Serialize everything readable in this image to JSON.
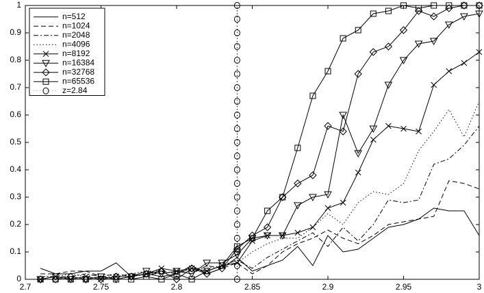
{
  "chart_data": {
    "type": "line",
    "x": [
      2.71,
      2.72,
      2.73,
      2.74,
      2.75,
      2.76,
      2.77,
      2.78,
      2.79,
      2.8,
      2.81,
      2.82,
      2.83,
      2.84,
      2.85,
      2.86,
      2.87,
      2.88,
      2.89,
      2.9,
      2.91,
      2.92,
      2.93,
      2.94,
      2.95,
      2.96,
      2.97,
      2.98,
      2.99,
      3.0
    ],
    "series": [
      {
        "name": "n=512",
        "color": "#000000",
        "dash": "solid",
        "marker": "none",
        "values": [
          0.04,
          0.02,
          0.02,
          0.03,
          0.03,
          0.06,
          0.01,
          0.02,
          0.01,
          0.02,
          0.05,
          0.02,
          0.04,
          0.08,
          0.03,
          0.05,
          0.07,
          0.12,
          0.05,
          0.16,
          0.1,
          0.11,
          0.15,
          0.19,
          0.2,
          0.22,
          0.26,
          0.25,
          0.25,
          0.16
        ]
      },
      {
        "name": "n=1024",
        "color": "#000000",
        "dash": "dashed",
        "marker": "none",
        "values": [
          0.02,
          0.02,
          0.03,
          0.03,
          0.01,
          0.02,
          0.01,
          0.02,
          0.02,
          0.03,
          0.02,
          0.05,
          0.04,
          0.06,
          0.02,
          0.05,
          0.1,
          0.13,
          0.15,
          0.18,
          0.15,
          0.13,
          0.16,
          0.2,
          0.21,
          0.22,
          0.23,
          0.36,
          0.35,
          0.33
        ]
      },
      {
        "name": "n=2048",
        "color": "#000000",
        "dash": "dashdot",
        "marker": "none",
        "values": [
          0.01,
          0.01,
          0.01,
          0.02,
          0.01,
          0.01,
          0.02,
          0.01,
          0.03,
          0.02,
          0.04,
          0.03,
          0.05,
          0.07,
          0.04,
          0.08,
          0.11,
          0.14,
          0.17,
          0.12,
          0.19,
          0.14,
          0.2,
          0.29,
          0.28,
          0.29,
          0.42,
          0.44,
          0.49,
          0.56
        ]
      },
      {
        "name": "n=4096",
        "color": "#000000",
        "dash": "dotted",
        "marker": "none",
        "values": [
          0.01,
          0.01,
          0.02,
          0.01,
          0.02,
          0.01,
          0.02,
          0.03,
          0.03,
          0.02,
          0.04,
          0.04,
          0.05,
          0.06,
          0.1,
          0.13,
          0.15,
          0.15,
          0.19,
          0.24,
          0.2,
          0.28,
          0.32,
          0.31,
          0.35,
          0.47,
          0.54,
          0.62,
          0.52,
          0.65
        ]
      },
      {
        "name": "n=8192",
        "color": "#000000",
        "dash": "solid",
        "marker": "x",
        "values": [
          0.0,
          0.01,
          0.0,
          0.01,
          0.0,
          0.01,
          0.01,
          0.02,
          0.04,
          0.03,
          0.04,
          0.03,
          0.05,
          0.06,
          0.14,
          0.16,
          0.16,
          0.17,
          0.19,
          0.26,
          0.28,
          0.39,
          0.51,
          0.56,
          0.55,
          0.54,
          0.71,
          0.76,
          0.79,
          0.83
        ]
      },
      {
        "name": "n=16384",
        "color": "#000000",
        "dash": "solid",
        "marker": "triangle",
        "values": [
          0.0,
          0.01,
          0.0,
          0.0,
          0.01,
          0.0,
          0.01,
          0.03,
          0.02,
          0.03,
          0.02,
          0.06,
          0.06,
          0.09,
          0.15,
          0.16,
          0.16,
          0.27,
          0.3,
          0.31,
          0.6,
          0.46,
          0.55,
          0.71,
          0.8,
          0.86,
          0.87,
          0.93,
          0.96,
          0.97
        ]
      },
      {
        "name": "n=32768",
        "color": "#000000",
        "dash": "solid",
        "marker": "diamond",
        "values": [
          0.0,
          0.0,
          0.01,
          0.0,
          0.0,
          0.01,
          0.01,
          0.02,
          0.03,
          0.0,
          0.04,
          0.02,
          0.04,
          0.11,
          0.16,
          0.19,
          0.3,
          0.35,
          0.38,
          0.56,
          0.54,
          0.75,
          0.83,
          0.85,
          0.91,
          0.98,
          0.96,
          0.99,
          1.0,
          1.0
        ]
      },
      {
        "name": "n=65536",
        "color": "#000000",
        "dash": "solid",
        "marker": "square",
        "values": [
          0.0,
          0.0,
          0.0,
          0.0,
          0.01,
          0.0,
          0.0,
          0.01,
          0.0,
          0.02,
          0.0,
          0.03,
          0.05,
          0.12,
          0.15,
          0.25,
          0.3,
          0.48,
          0.67,
          0.76,
          0.88,
          0.91,
          0.97,
          0.98,
          1.0,
          0.99,
          1.0,
          1.0,
          1.0,
          1.0
        ]
      },
      {
        "name": "z=2.84",
        "color": "#000000",
        "dash": "dotted",
        "marker": "circle",
        "x": [
          2.84,
          2.84,
          2.84,
          2.84,
          2.84,
          2.84,
          2.84,
          2.84,
          2.84,
          2.84,
          2.84,
          2.84,
          2.84,
          2.84,
          2.84,
          2.84,
          2.84,
          2.84,
          2.84,
          2.84,
          2.84
        ],
        "values": [
          0.0,
          0.05,
          0.1,
          0.15,
          0.2,
          0.25,
          0.3,
          0.35,
          0.4,
          0.45,
          0.5,
          0.55,
          0.6,
          0.65,
          0.7,
          0.75,
          0.8,
          0.85,
          0.9,
          0.95,
          1.0
        ]
      }
    ],
    "xlim": [
      2.7,
      3
    ],
    "xticks": [
      2.7,
      2.75,
      2.8,
      2.85,
      2.9,
      2.95,
      3
    ],
    "ylim": [
      0,
      1
    ],
    "yticks": [
      0,
      0.1,
      0.2,
      0.3,
      0.4,
      0.5,
      0.6,
      0.7,
      0.8,
      0.9,
      1
    ],
    "legend": "upper-left"
  }
}
